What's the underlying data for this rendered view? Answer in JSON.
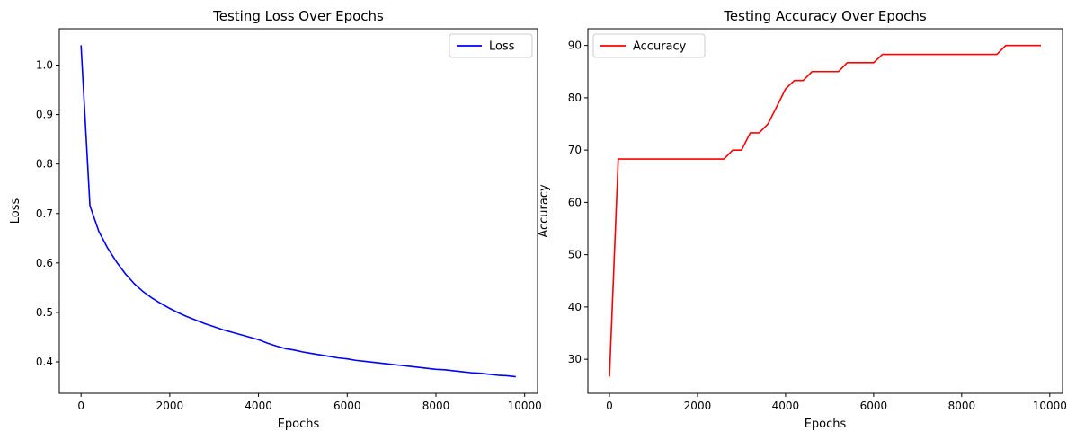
{
  "chart_data": [
    {
      "type": "line",
      "title": "Testing Loss Over Epochs",
      "xlabel": "Epochs",
      "ylabel": "Loss",
      "xlim": [
        -490,
        10290
      ],
      "ylim": [
        0.3365,
        1.0735
      ],
      "xticks": [
        0,
        2000,
        4000,
        6000,
        8000,
        10000
      ],
      "yticks": [
        0.4,
        0.5,
        0.6,
        0.7,
        0.8,
        0.9,
        1.0
      ],
      "ytick_labels": [
        "0.4",
        "0.5",
        "0.6",
        "0.7",
        "0.8",
        "0.9",
        "1.0"
      ],
      "legend_position": "upper right",
      "grid": false,
      "series": [
        {
          "name": "Loss",
          "color": "#0000ff",
          "x": [
            0,
            200,
            400,
            600,
            800,
            1000,
            1200,
            1400,
            1600,
            1800,
            2000,
            2200,
            2400,
            2600,
            2800,
            3000,
            3200,
            3400,
            3600,
            3800,
            4000,
            4200,
            4400,
            4600,
            4800,
            5000,
            5200,
            5400,
            5600,
            5800,
            6000,
            6200,
            6400,
            6600,
            6800,
            7000,
            7200,
            7400,
            7600,
            7800,
            8000,
            8200,
            8400,
            8600,
            8800,
            9000,
            9200,
            9400,
            9600,
            9800
          ],
          "y": [
            1.04,
            0.716,
            0.664,
            0.63,
            0.602,
            0.578,
            0.558,
            0.542,
            0.529,
            0.518,
            0.508,
            0.499,
            0.491,
            0.484,
            0.477,
            0.471,
            0.465,
            0.46,
            0.455,
            0.45,
            0.445,
            0.438,
            0.432,
            0.427,
            0.424,
            0.42,
            0.417,
            0.414,
            0.411,
            0.408,
            0.406,
            0.403,
            0.401,
            0.399,
            0.397,
            0.395,
            0.393,
            0.391,
            0.389,
            0.387,
            0.385,
            0.384,
            0.382,
            0.38,
            0.378,
            0.377,
            0.375,
            0.373,
            0.372,
            0.37
          ]
        }
      ]
    },
    {
      "type": "line",
      "title": "Testing Accuracy Over Epochs",
      "xlabel": "Epochs",
      "ylabel": "Accuracy",
      "xlim": [
        -490,
        10290
      ],
      "ylim": [
        23.5,
        93.2
      ],
      "xticks": [
        0,
        2000,
        4000,
        6000,
        8000,
        10000
      ],
      "yticks": [
        30,
        40,
        50,
        60,
        70,
        80,
        90
      ],
      "ytick_labels": [
        "30",
        "40",
        "50",
        "60",
        "70",
        "80",
        "90"
      ],
      "legend_position": "upper left",
      "grid": false,
      "series": [
        {
          "name": "Accuracy",
          "color": "#ff0000",
          "x": [
            0,
            200,
            400,
            600,
            800,
            1000,
            1200,
            1400,
            1600,
            1800,
            2000,
            2200,
            2400,
            2600,
            2800,
            3000,
            3200,
            3400,
            3600,
            3800,
            4000,
            4200,
            4400,
            4600,
            4800,
            5000,
            5200,
            5400,
            5600,
            5800,
            6000,
            6200,
            6400,
            6600,
            6800,
            7000,
            7200,
            7400,
            7600,
            7800,
            8000,
            8200,
            8400,
            8600,
            8800,
            9000,
            9200,
            9400,
            9600,
            9800
          ],
          "y": [
            26.7,
            68.3,
            68.3,
            68.3,
            68.3,
            68.3,
            68.3,
            68.3,
            68.3,
            68.3,
            68.3,
            68.3,
            68.3,
            68.3,
            70.0,
            70.0,
            73.3,
            73.3,
            75.0,
            78.3,
            81.7,
            83.3,
            83.3,
            85.0,
            85.0,
            85.0,
            85.0,
            86.7,
            86.7,
            86.7,
            86.7,
            88.3,
            88.3,
            88.3,
            88.3,
            88.3,
            88.3,
            88.3,
            88.3,
            88.3,
            88.3,
            88.3,
            88.3,
            88.3,
            88.3,
            90.0,
            90.0,
            90.0,
            90.0,
            90.0
          ]
        }
      ]
    }
  ]
}
